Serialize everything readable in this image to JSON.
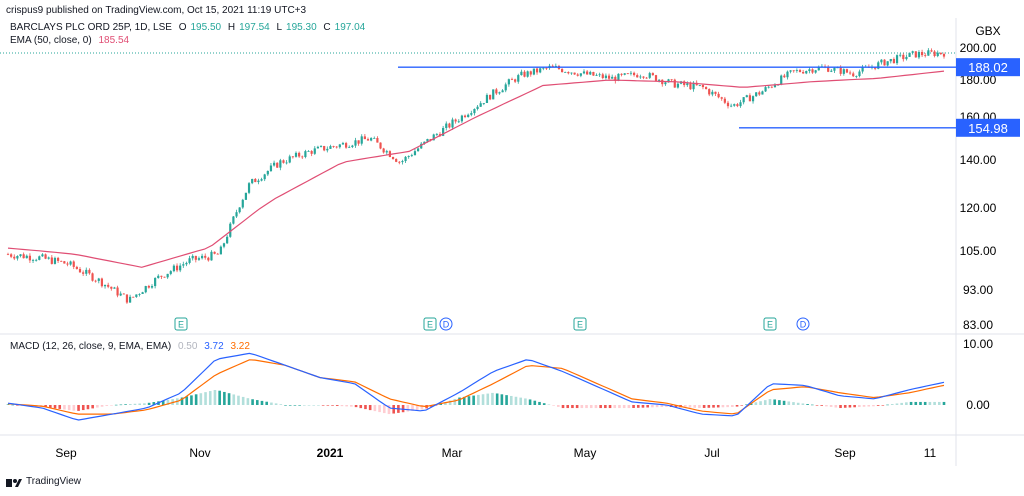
{
  "header": {
    "publisher": "crispus9 published on TradingView.com, Oct 15, 2021 11:19 UTC+3"
  },
  "legend": {
    "symbol": "BARCLAYS PLC ORD 25P, 1D, LSE",
    "ohlc": {
      "o_label": "O",
      "o": "195.50",
      "h_label": "H",
      "h": "197.54",
      "l_label": "L",
      "l": "195.30",
      "c_label": "C",
      "c": "197.04"
    },
    "ema_label": "EMA (50, close, 0)",
    "ema_value": "185.54",
    "macd_label": "MACD (12, 26, close, 9, EMA, EMA)",
    "macd_hist": "0.50",
    "macd_line": "3.72",
    "macd_signal": "3.22"
  },
  "footer": {
    "brand": "TradingView"
  },
  "colors": {
    "up": "#26a69a",
    "down": "#ef5350",
    "ema": "#e04e74",
    "level": "#2962ff",
    "macd": "#2962ff",
    "signal": "#ff6d00"
  },
  "chart_data": [
    {
      "type": "candlestick",
      "title": "BARCLAYS PLC ORD 25P, 1D, LSE",
      "currency": "GBX",
      "y_ticks": [
        "200.00",
        "180.00",
        "160.00",
        "140.00",
        "120.00",
        "105.00",
        "93.00",
        "83.00"
      ],
      "x_ticks": [
        "Sep",
        "Nov",
        "2021",
        "Mar",
        "May",
        "Jul",
        "Sep",
        "11"
      ],
      "levels": [
        {
          "label": "188.02",
          "value": 188.02
        },
        {
          "label": "154.98",
          "value": 154.98
        }
      ],
      "events": [
        "E",
        "E",
        "D",
        "E",
        "E",
        "D"
      ],
      "series": [
        {
          "name": "BARCLAYS PLC ORD 25P",
          "points": [
            [
              "Aug 2020",
              104
            ],
            [
              "early Sep 2020",
              103
            ],
            [
              "mid Sep 2020",
              101
            ],
            [
              "late Sep 2020",
              96
            ],
            [
              "early Oct 2020",
              90
            ],
            [
              "Oct 2020",
              97
            ],
            [
              "late Oct 2020",
              102
            ],
            [
              "early Nov 2020",
              104
            ],
            [
              "Nov 2020",
              130
            ],
            [
              "late Nov 2020",
              139
            ],
            [
              "Dec 2020",
              144
            ],
            [
              "late Dec 2020",
              147
            ],
            [
              "Jan 2021",
              150
            ],
            [
              "late Jan 2021",
              139
            ],
            [
              "Feb 2021",
              150
            ],
            [
              "late Feb 2021",
              160
            ],
            [
              "Mar 2021",
              172
            ],
            [
              "late Mar 2021",
              183
            ],
            [
              "Apr 2021",
              188
            ],
            [
              "late Apr 2021",
              184
            ],
            [
              "May 2021",
              181
            ],
            [
              "late May 2021",
              184
            ],
            [
              "Jun 2021",
              178
            ],
            [
              "late Jun 2021",
              176
            ],
            [
              "mid Jul 2021",
              166
            ],
            [
              "late Jul 2021",
              174
            ],
            [
              "Aug 2021",
              185
            ],
            [
              "late Aug 2021",
              188
            ],
            [
              "mid Sep 2021",
              184
            ],
            [
              "late Sep 2021",
              191
            ],
            [
              "early Oct 2021",
              196
            ],
            [
              "Oct 15 2021",
              197.04
            ]
          ]
        },
        {
          "name": "EMA (50, close, 0)",
          "points": [
            [
              "Aug 2020",
              106
            ],
            [
              "Sep 2020",
              104
            ],
            [
              "Oct 2020",
              100
            ],
            [
              "Nov 2020",
              106
            ],
            [
              "Dec 2020",
              124
            ],
            [
              "Jan 2021",
              139
            ],
            [
              "Feb 2021",
              144
            ],
            [
              "Mar 2021",
              160
            ],
            [
              "Apr 2021",
              177
            ],
            [
              "May 2021",
              180
            ],
            [
              "Jun 2021",
              179
            ],
            [
              "Jul 2021",
              176
            ],
            [
              "Aug 2021",
              179
            ],
            [
              "Sep 2021",
              181
            ],
            [
              "Oct 15 2021",
              185.54
            ]
          ]
        }
      ]
    },
    {
      "type": "line",
      "title": "MACD (12, 26, close, 9, EMA, EMA)",
      "y_ticks": [
        "10.00",
        "0.00"
      ],
      "series": [
        {
          "name": "MACD",
          "points": [
            [
              "Aug 2020",
              0.3
            ],
            [
              "Sep 2020",
              -0.5
            ],
            [
              "early Oct 2020",
              -2.5
            ],
            [
              "Oct 2020",
              -1.5
            ],
            [
              "late Oct 2020",
              -0.5
            ],
            [
              "early Nov 2020",
              2.0
            ],
            [
              "mid Nov 2020",
              7.5
            ],
            [
              "late Nov 2020",
              8.5
            ],
            [
              "Dec 2020",
              6.5
            ],
            [
              "late Dec 2020",
              4.5
            ],
            [
              "Jan 2021",
              3.5
            ],
            [
              "late Jan 2021",
              -0.5
            ],
            [
              "Feb 2021",
              -1.0
            ],
            [
              "late Feb 2021",
              2.0
            ],
            [
              "Mar 2021",
              5.5
            ],
            [
              "early Apr 2021",
              7.5
            ],
            [
              "late Apr 2021",
              5.5
            ],
            [
              "May 2021",
              3.0
            ],
            [
              "Jun 2021",
              0.5
            ],
            [
              "late Jun 2021",
              0.0
            ],
            [
              "Jul 2021",
              -1.5
            ],
            [
              "late Jul 2021",
              -1.8
            ],
            [
              "Aug 2021",
              3.5
            ],
            [
              "late Aug 2021",
              3.2
            ],
            [
              "Sep 2021",
              1.5
            ],
            [
              "late Sep 2021",
              1.0
            ],
            [
              "early Oct 2021",
              2.5
            ],
            [
              "Oct 15 2021",
              3.72
            ]
          ]
        },
        {
          "name": "Signal",
          "points": [
            [
              "Aug 2020",
              0.2
            ],
            [
              "Sep 2020",
              -0.2
            ],
            [
              "early Oct 2020",
              -1.5
            ],
            [
              "Oct 2020",
              -1.5
            ],
            [
              "late Oct 2020",
              -0.8
            ],
            [
              "early Nov 2020",
              0.8
            ],
            [
              "mid Nov 2020",
              5.0
            ],
            [
              "late Nov 2020",
              7.5
            ],
            [
              "Dec 2020",
              6.5
            ],
            [
              "late Dec 2020",
              4.5
            ],
            [
              "Jan 2021",
              3.8
            ],
            [
              "late Jan 2021",
              1.0
            ],
            [
              "Feb 2021",
              -0.3
            ],
            [
              "late Feb 2021",
              0.8
            ],
            [
              "Mar 2021",
              3.5
            ],
            [
              "early Apr 2021",
              6.5
            ],
            [
              "late Apr 2021",
              6.0
            ],
            [
              "May 2021",
              3.5
            ],
            [
              "Jun 2021",
              1.0
            ],
            [
              "late Jun 2021",
              0.3
            ],
            [
              "Jul 2021",
              -1.0
            ],
            [
              "late Jul 2021",
              -1.5
            ],
            [
              "Aug 2021",
              2.5
            ],
            [
              "late Aug 2021",
              3.0
            ],
            [
              "Sep 2021",
              2.0
            ],
            [
              "late Sep 2021",
              1.2
            ],
            [
              "early Oct 2021",
              2.0
            ],
            [
              "Oct 15 2021",
              3.22
            ]
          ]
        },
        {
          "name": "Histogram",
          "points": [
            [
              "Aug 2020",
              0.1
            ],
            [
              "Sep 2020",
              -0.3
            ],
            [
              "early Oct 2020",
              -1.0
            ],
            [
              "Oct 2020",
              0.0
            ],
            [
              "late Oct 2020",
              0.3
            ],
            [
              "early Nov 2020",
              1.2
            ],
            [
              "mid Nov 2020",
              2.5
            ],
            [
              "late Nov 2020",
              1.0
            ],
            [
              "Dec 2020",
              0.0
            ],
            [
              "late Dec 2020",
              0.0
            ],
            [
              "Jan 2021",
              -0.3
            ],
            [
              "late Jan 2021",
              -1.5
            ],
            [
              "Feb 2021",
              -0.7
            ],
            [
              "late Feb 2021",
              1.2
            ],
            [
              "Mar 2021",
              2.0
            ],
            [
              "early Apr 2021",
              1.0
            ],
            [
              "late Apr 2021",
              -0.5
            ],
            [
              "May 2021",
              -0.5
            ],
            [
              "Jun 2021",
              -0.5
            ],
            [
              "late Jun 2021",
              -0.3
            ],
            [
              "Jul 2021",
              -0.5
            ],
            [
              "late Jul 2021",
              -0.3
            ],
            [
              "Aug 2021",
              1.0
            ],
            [
              "late Aug 2021",
              0.2
            ],
            [
              "Sep 2021",
              -0.5
            ],
            [
              "late Sep 2021",
              -0.2
            ],
            [
              "early Oct 2021",
              0.5
            ],
            [
              "Oct 15 2021",
              0.5
            ]
          ]
        }
      ]
    }
  ]
}
